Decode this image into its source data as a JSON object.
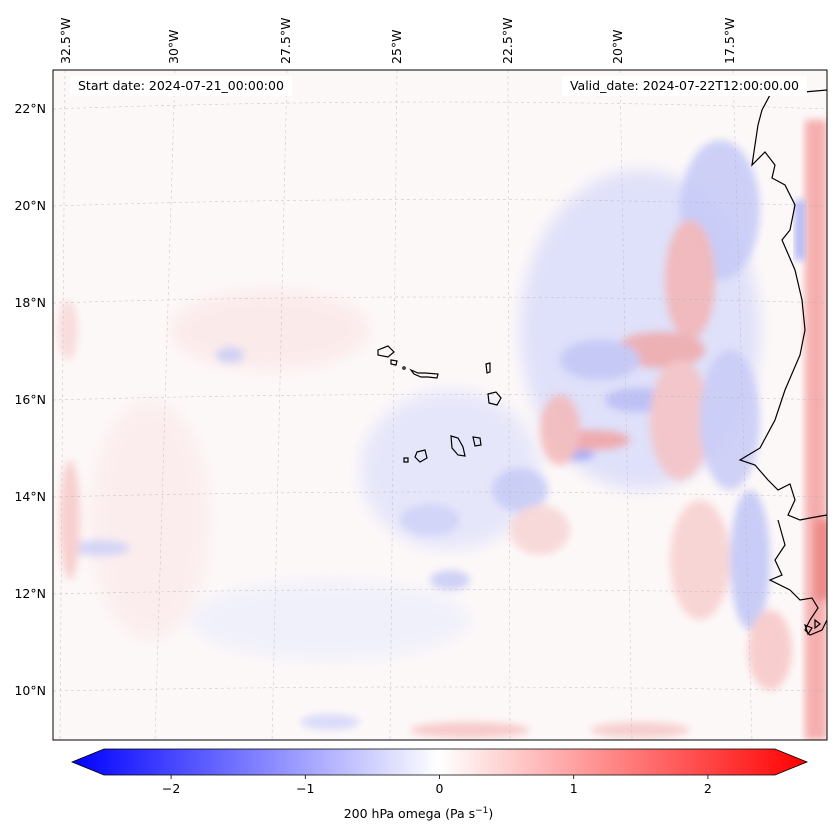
{
  "header": {
    "start_date": "Start date: 2024-07-21_00:00:00",
    "valid_date": "Valid_date: 2024-07-22T12:00:00.00"
  },
  "map": {
    "lon_labels": [
      "32.5°W",
      "30°W",
      "27.5°W",
      "25°W",
      "22.5°W",
      "20°W",
      "17.5°W"
    ],
    "lat_labels": [
      "22°N",
      "20°N",
      "18°N",
      "16°N",
      "14°N",
      "12°N",
      "10°N"
    ],
    "field": "200 hPa omega",
    "region": "Cabo Verde and West African coast"
  },
  "colorbar": {
    "ticks": [
      "−2",
      "−1",
      "0",
      "1",
      "2"
    ],
    "tick_values": [
      -2,
      -1,
      0,
      1,
      2
    ],
    "range": [
      -2.5,
      2.5
    ],
    "label_main": "200 hPa omega (Pa s",
    "label_sup": "−1",
    "label_close": ")",
    "colormap": "bwr",
    "negative_color": "#0000ff",
    "zero_color": "#ffffff",
    "positive_color": "#ff0000"
  }
}
